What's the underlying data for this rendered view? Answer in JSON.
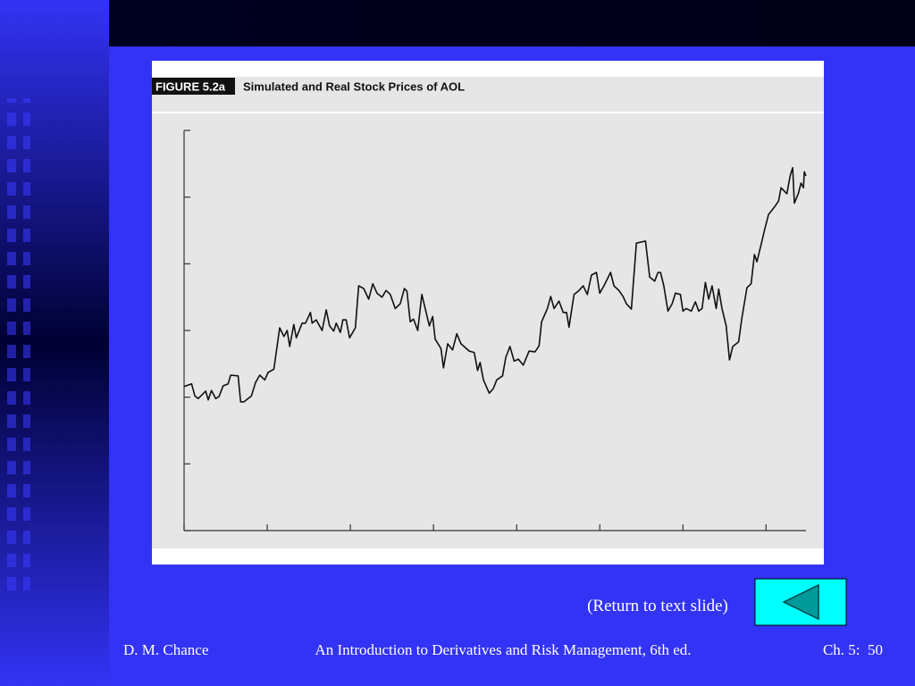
{
  "chart_data": {
    "type": "line",
    "figure_label": "FIGURE 5.2a",
    "title": "Simulated and Real Stock Prices of AOL",
    "color": "#111111",
    "xlim": [
      0,
      7.48
    ],
    "xticks": [
      0,
      1,
      2,
      3,
      4,
      5,
      6,
      7
    ],
    "ylim": [
      0,
      6
    ],
    "yticks": [
      0,
      1,
      2,
      3,
      4,
      5,
      6
    ],
    "x": [
      0,
      0.09,
      0.13,
      0.17,
      0.26,
      0.29,
      0.33,
      0.38,
      0.42,
      0.47,
      0.53,
      0.56,
      0.65,
      0.68,
      0.72,
      0.81,
      0.86,
      0.91,
      0.97,
      1.01,
      1.08,
      1.15,
      1.2,
      1.24,
      1.27,
      1.32,
      1.35,
      1.42,
      1.46,
      1.52,
      1.54,
      1.59,
      1.66,
      1.71,
      1.75,
      1.8,
      1.83,
      1.88,
      1.91,
      1.95,
      1.99,
      2.06,
      2.1,
      2.16,
      2.22,
      2.27,
      2.32,
      2.38,
      2.43,
      2.48,
      2.54,
      2.6,
      2.65,
      2.68,
      2.72,
      2.76,
      2.81,
      2.86,
      2.95,
      2.99,
      3.02,
      3.09,
      3.12,
      3.17,
      3.23,
      3.28,
      3.33,
      3.43,
      3.49,
      3.53,
      3.56,
      3.6,
      3.67,
      3.72,
      3.76,
      3.83,
      3.87,
      3.92,
      3.97,
      4.02,
      4.08,
      4.15,
      4.22,
      4.27,
      4.3,
      4.37,
      4.41,
      4.45,
      4.51,
      4.56,
      4.6,
      4.63,
      4.69,
      4.75,
      4.8,
      4.85,
      4.9,
      4.96,
      5,
      5.05,
      5.13,
      5.17,
      5.23,
      5.28,
      5.32,
      5.38,
      5.44,
      5.55,
      5.6,
      5.66,
      5.7,
      5.73,
      5.77,
      5.82,
      5.87,
      5.91,
      5.97,
      6,
      6.04,
      6.1,
      6.15,
      6.19,
      6.23,
      6.27,
      6.31,
      6.35,
      6.4,
      6.43,
      6.47,
      6.52,
      6.56,
      6.6,
      6.67,
      6.71,
      6.77,
      6.82,
      6.86,
      6.89,
      6.95,
      6.98,
      7.03,
      7.1,
      7.15,
      7.18,
      7.25,
      7.29,
      7.32,
      7.34,
      7.39,
      7.42,
      7.45,
      7.46,
      7.48
    ],
    "values": [
      2.16,
      2.2,
      2.02,
      1.98,
      2.09,
      1.96,
      2.1,
      1.98,
      2.01,
      2.17,
      2.2,
      2.33,
      2.32,
      1.93,
      1.93,
      2.02,
      2.22,
      2.33,
      2.26,
      2.37,
      2.42,
      3.04,
      2.91,
      3,
      2.76,
      3.09,
      2.89,
      3.11,
      3.11,
      3.27,
      3.11,
      3.16,
      3,
      3.31,
      3.07,
      2.99,
      3.11,
      2.97,
      3.16,
      3.16,
      2.89,
      3.04,
      3.67,
      3.63,
      3.47,
      3.7,
      3.56,
      3.5,
      3.6,
      3.54,
      3.33,
      3.4,
      3.63,
      3.59,
      3.13,
      3.17,
      3,
      3.54,
      3.07,
      3.21,
      2.87,
      2.73,
      2.44,
      2.8,
      2.71,
      2.95,
      2.8,
      2.69,
      2.67,
      2.4,
      2.52,
      2.26,
      2.06,
      2.13,
      2.26,
      2.32,
      2.6,
      2.76,
      2.54,
      2.57,
      2.48,
      2.69,
      2.68,
      2.77,
      3.13,
      3.33,
      3.51,
      3.33,
      3.44,
      3.27,
      3.27,
      3.05,
      3.54,
      3.6,
      3.67,
      3.54,
      3.83,
      3.87,
      3.56,
      3.67,
      3.87,
      3.67,
      3.6,
      3.51,
      3.4,
      3.32,
      4.31,
      4.34,
      3.8,
      3.74,
      3.87,
      3.87,
      3.67,
      3.29,
      3.4,
      3.56,
      3.54,
      3.29,
      3.33,
      3.29,
      3.43,
      3.29,
      3.33,
      3.72,
      3.47,
      3.67,
      3.33,
      3.62,
      3.33,
      3.07,
      2.56,
      2.76,
      2.83,
      3.2,
      3.64,
      3.7,
      4.14,
      4.03,
      4.34,
      4.5,
      4.74,
      4.85,
      4.94,
      5.14,
      5.05,
      5.32,
      5.44,
      4.91,
      5.06,
      5.21,
      5.14,
      5.38,
      5.32
    ]
  },
  "slide": {
    "return_link": "(Return to text slide)",
    "footer": {
      "author": "D. M. Chance",
      "book": "An Introduction to Derivatives and Risk Management, 6th ed.",
      "page": "Ch. 5:  50"
    }
  }
}
